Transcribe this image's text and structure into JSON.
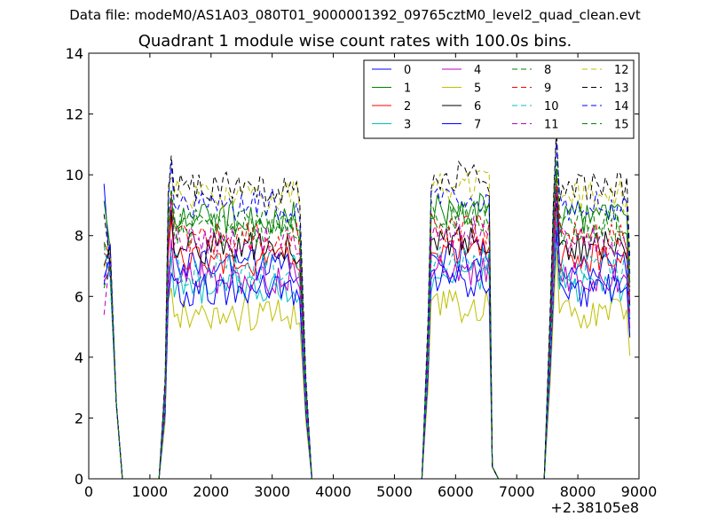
{
  "supertitle": "Data file: modeM0/AS1A03_080T01_9000001392_09765cztM0_level2_quad_clean.evt",
  "chart_data": {
    "type": "line",
    "title": "Quadrant 1 module wise count rates with 100.0s bins.",
    "xlabel": "",
    "ylabel": "",
    "x_offset_label": "+2.38105e8",
    "xlim": [
      0,
      9000
    ],
    "ylim": [
      0,
      14
    ],
    "xticks": [
      0,
      1000,
      2000,
      3000,
      4000,
      5000,
      6000,
      7000,
      8000,
      9000
    ],
    "yticks": [
      0,
      2,
      4,
      6,
      8,
      10,
      12,
      14
    ],
    "grid": false,
    "legend_position": "top-right",
    "legend_columns": 4,
    "segments": [
      {
        "x_start": 250,
        "x_end": 650,
        "levels": [
          [
            9.8,
            7.0,
            2.5,
            0,
            0
          ],
          [
            9.7,
            7.2,
            2.6,
            0,
            0
          ]
        ]
      },
      {
        "x_start": 1150,
        "x_end": 3650
      },
      {
        "x_start": 5450,
        "x_end": 6750
      },
      {
        "x_start": 7450,
        "x_end": 8900
      }
    ],
    "series": [
      {
        "name": "0",
        "color": "#0000ff",
        "dash": "solid",
        "base": 7.0
      },
      {
        "name": "1",
        "color": "#008000",
        "dash": "solid",
        "base": 8.6
      },
      {
        "name": "2",
        "color": "#ff0000",
        "dash": "solid",
        "base": 7.2
      },
      {
        "name": "3",
        "color": "#00bfbf",
        "dash": "solid",
        "base": 6.3
      },
      {
        "name": "4",
        "color": "#bf00bf",
        "dash": "solid",
        "base": 6.6
      },
      {
        "name": "5",
        "color": "#bfbf00",
        "dash": "solid",
        "base": 5.4
      },
      {
        "name": "6",
        "color": "#000000",
        "dash": "solid",
        "base": 7.6
      },
      {
        "name": "7",
        "color": "#0000ff",
        "dash": "solid",
        "base": 6.2
      },
      {
        "name": "8",
        "color": "#008000",
        "dash": "dashed",
        "base": 8.2
      },
      {
        "name": "9",
        "color": "#ff0000",
        "dash": "dashed",
        "base": 7.9
      },
      {
        "name": "10",
        "color": "#00bfbf",
        "dash": "dashed",
        "base": 6.9
      },
      {
        "name": "11",
        "color": "#bf00bf",
        "dash": "dashed",
        "base": 7.8
      },
      {
        "name": "12",
        "color": "#bfbf00",
        "dash": "dashed",
        "base": 9.3
      },
      {
        "name": "13",
        "color": "#000000",
        "dash": "dashed",
        "base": 9.6
      },
      {
        "name": "14",
        "color": "#0000ff",
        "dash": "dashed",
        "base": 9.0
      },
      {
        "name": "15",
        "color": "#008000",
        "dash": "dashed",
        "base": 8.4
      }
    ]
  }
}
